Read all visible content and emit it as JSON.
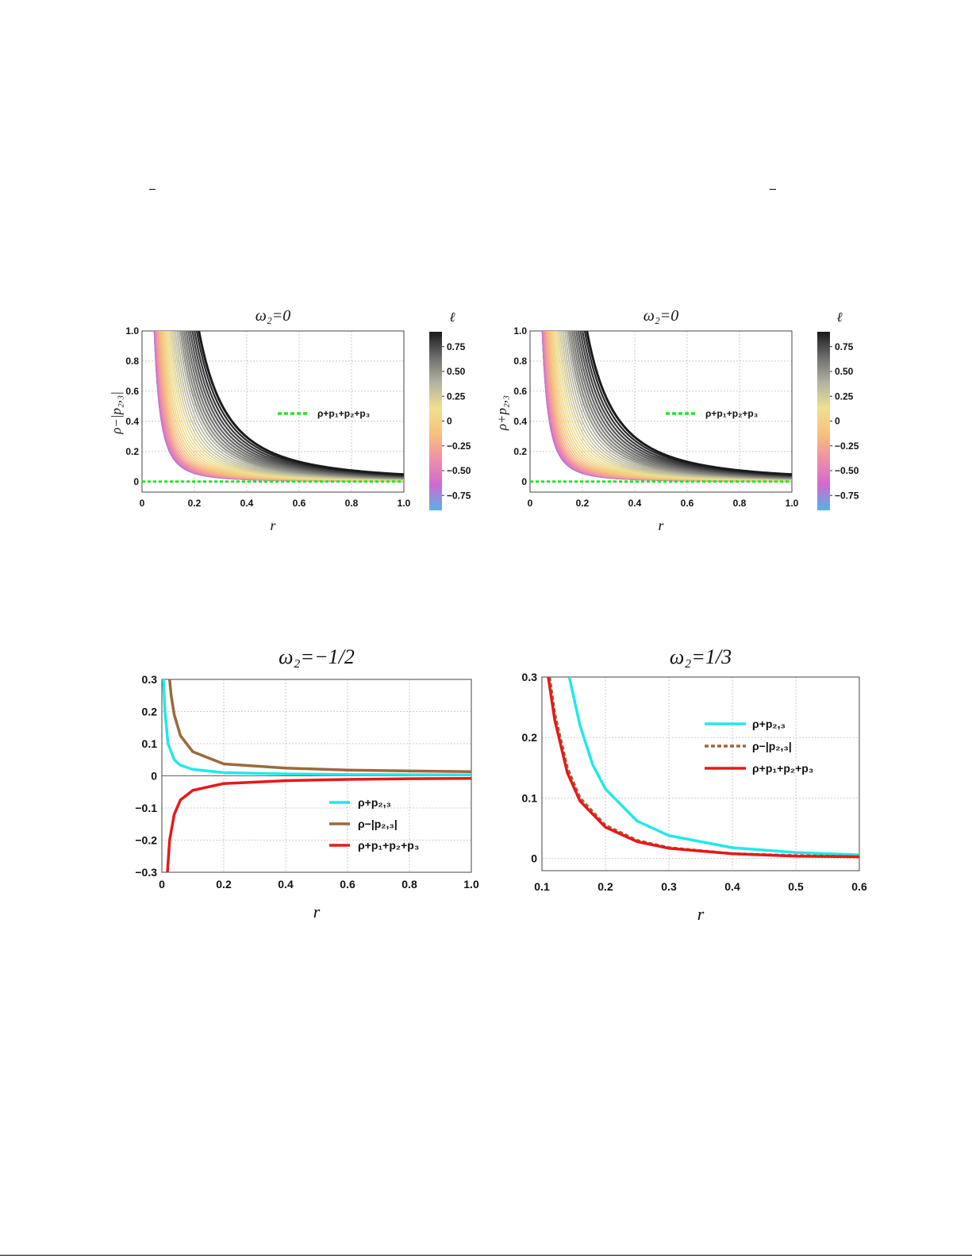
{
  "page": {
    "marks": [
      "–",
      "–"
    ]
  },
  "colorbar": {
    "label": "ℓ",
    "ticks": [
      0.75,
      0.5,
      0.25,
      0,
      -0.25,
      -0.5,
      -0.75
    ],
    "tick_labels": [
      "0.75",
      "0.50",
      "0.25",
      "0",
      "−0.25",
      "−0.50",
      "−0.75"
    ],
    "range": [
      -0.9,
      0.9
    ],
    "colors": [
      "#55b4e8",
      "#d06ad0",
      "#f08fa8",
      "#f5c27a",
      "#efe090",
      "#b3b3a0",
      "#6e6e6e",
      "#1a1a1a"
    ]
  },
  "chart_data": [
    {
      "type": "line",
      "title": "ω₂=0",
      "xlabel": "r",
      "ylabel": "ρ−|p₂,₃|",
      "xlim": [
        0,
        1
      ],
      "ylim": [
        -0.07,
        1.0
      ],
      "x_ticks": [
        0,
        0.2,
        0.4,
        0.6,
        0.8,
        1.0
      ],
      "x_tick_labels": [
        "0",
        "0.2",
        "0.4",
        "0.6",
        "0.8",
        "1.0"
      ],
      "y_ticks": [
        0,
        0.2,
        0.4,
        0.6,
        0.8,
        1.0
      ],
      "y_tick_labels": [
        "0",
        "0.2",
        "0.4",
        "0.6",
        "0.8",
        "1.0"
      ],
      "grid": true,
      "legend_position": "center-right",
      "family": {
        "parameter": "ℓ",
        "range": [
          -0.9,
          0.9
        ],
        "curve_values_at_r_1": [
          0.002,
          0.04
        ]
      },
      "series": [
        {
          "name": "ρ+p₁+p₂+p₃",
          "values": [
            0,
            0
          ],
          "x": [
            0,
            1.0
          ],
          "color": "#22e822",
          "style": "dotted"
        }
      ]
    },
    {
      "type": "line",
      "title": "ω₂=0",
      "xlabel": "r",
      "ylabel": "ρ+p₂,₃",
      "xlim": [
        0,
        1
      ],
      "ylim": [
        -0.07,
        1.0
      ],
      "x_ticks": [
        0,
        0.2,
        0.4,
        0.6,
        0.8,
        1.0
      ],
      "x_tick_labels": [
        "0",
        "0.2",
        "0.4",
        "0.6",
        "0.8",
        "1.0"
      ],
      "y_ticks": [
        0,
        0.2,
        0.4,
        0.6,
        0.8,
        1.0
      ],
      "y_tick_labels": [
        "0",
        "0.2",
        "0.4",
        "0.6",
        "0.8",
        "1.0"
      ],
      "grid": true,
      "legend_position": "center-right",
      "family": {
        "parameter": "ℓ",
        "range": [
          -0.9,
          0.9
        ],
        "curve_values_at_r_1": [
          0.002,
          0.04
        ]
      },
      "series": [
        {
          "name": "ρ+p₁+p₂+p₃",
          "values": [
            0,
            0
          ],
          "x": [
            0,
            1.0
          ],
          "color": "#22e822",
          "style": "dotted"
        }
      ]
    },
    {
      "type": "line",
      "title": "ω₂=−1/2",
      "xlabel": "r",
      "ylabel": "",
      "xlim": [
        0,
        1
      ],
      "ylim": [
        -0.3,
        0.3
      ],
      "x_ticks": [
        0,
        0.2,
        0.4,
        0.6,
        0.8,
        1.0
      ],
      "x_tick_labels": [
        "0",
        "0.2",
        "0.4",
        "0.6",
        "0.8",
        "1.0"
      ],
      "y_ticks": [
        -0.3,
        -0.2,
        -0.1,
        0,
        0.1,
        0.2,
        0.3
      ],
      "y_tick_labels": [
        "−0.3",
        "−0.2",
        "−0.1",
        "0",
        "0.1",
        "0.2",
        "0.3"
      ],
      "grid": true,
      "legend_position": "lower-right",
      "series": [
        {
          "name": "ρ+p₂,₃",
          "color": "#22e8e8",
          "style": "solid",
          "x": [
            0.005,
            0.01,
            0.02,
            0.04,
            0.06,
            0.1,
            0.2,
            0.4,
            0.6,
            0.8,
            1.0
          ],
          "values": [
            0.3,
            0.2,
            0.1,
            0.05,
            0.033,
            0.02,
            0.01,
            0.006,
            0.004,
            0.0035,
            0.003
          ]
        },
        {
          "name": "ρ−|p₂,₃|",
          "color": "#9b6a3a",
          "style": "solid",
          "x": [
            0.025,
            0.03,
            0.04,
            0.06,
            0.1,
            0.2,
            0.4,
            0.6,
            0.8,
            1.0
          ],
          "values": [
            0.3,
            0.25,
            0.19,
            0.125,
            0.075,
            0.037,
            0.024,
            0.018,
            0.015,
            0.013
          ]
        },
        {
          "name": "ρ+p₁+p₂+p₃",
          "color": "#e81818",
          "style": "solid",
          "x": [
            0.018,
            0.025,
            0.04,
            0.06,
            0.1,
            0.2,
            0.4,
            0.6,
            0.8,
            1.0
          ],
          "values": [
            -0.3,
            -0.2,
            -0.12,
            -0.075,
            -0.045,
            -0.024,
            -0.015,
            -0.011,
            -0.009,
            -0.008
          ]
        }
      ]
    },
    {
      "type": "line",
      "title": "ω₂=1/3",
      "xlabel": "r",
      "ylabel": "",
      "xlim": [
        0.1,
        0.6
      ],
      "ylim": [
        -0.02,
        0.3
      ],
      "x_ticks": [
        0.1,
        0.2,
        0.3,
        0.4,
        0.5,
        0.6
      ],
      "x_tick_labels": [
        "0.1",
        "0.2",
        "0.3",
        "0.4",
        "0.5",
        "0.6"
      ],
      "y_ticks": [
        0,
        0.1,
        0.2,
        0.3
      ],
      "y_tick_labels": [
        "0",
        "0.1",
        "0.2",
        "0.3"
      ],
      "grid": true,
      "legend_position": "upper-right",
      "series": [
        {
          "name": "ρ+p₂,₃",
          "color": "#22e8e8",
          "style": "solid",
          "x": [
            0.143,
            0.16,
            0.18,
            0.2,
            0.25,
            0.3,
            0.4,
            0.5,
            0.6
          ],
          "values": [
            0.3,
            0.22,
            0.155,
            0.115,
            0.062,
            0.038,
            0.018,
            0.01,
            0.006
          ]
        },
        {
          "name": "ρ−|p₂,₃|",
          "color": "#9b6a3a",
          "style": "dotted",
          "x": [
            0.112,
            0.12,
            0.14,
            0.16,
            0.2,
            0.25,
            0.3,
            0.4,
            0.5,
            0.6
          ],
          "values": [
            0.3,
            0.24,
            0.15,
            0.1,
            0.055,
            0.03,
            0.018,
            0.008,
            0.005,
            0.003
          ]
        },
        {
          "name": "ρ+p₁+p₂+p₃",
          "color": "#e81818",
          "style": "solid",
          "x": [
            0.11,
            0.12,
            0.14,
            0.16,
            0.2,
            0.25,
            0.3,
            0.4,
            0.5,
            0.6
          ],
          "values": [
            0.3,
            0.23,
            0.142,
            0.095,
            0.052,
            0.028,
            0.017,
            0.008,
            0.004,
            0.003
          ]
        }
      ]
    }
  ]
}
